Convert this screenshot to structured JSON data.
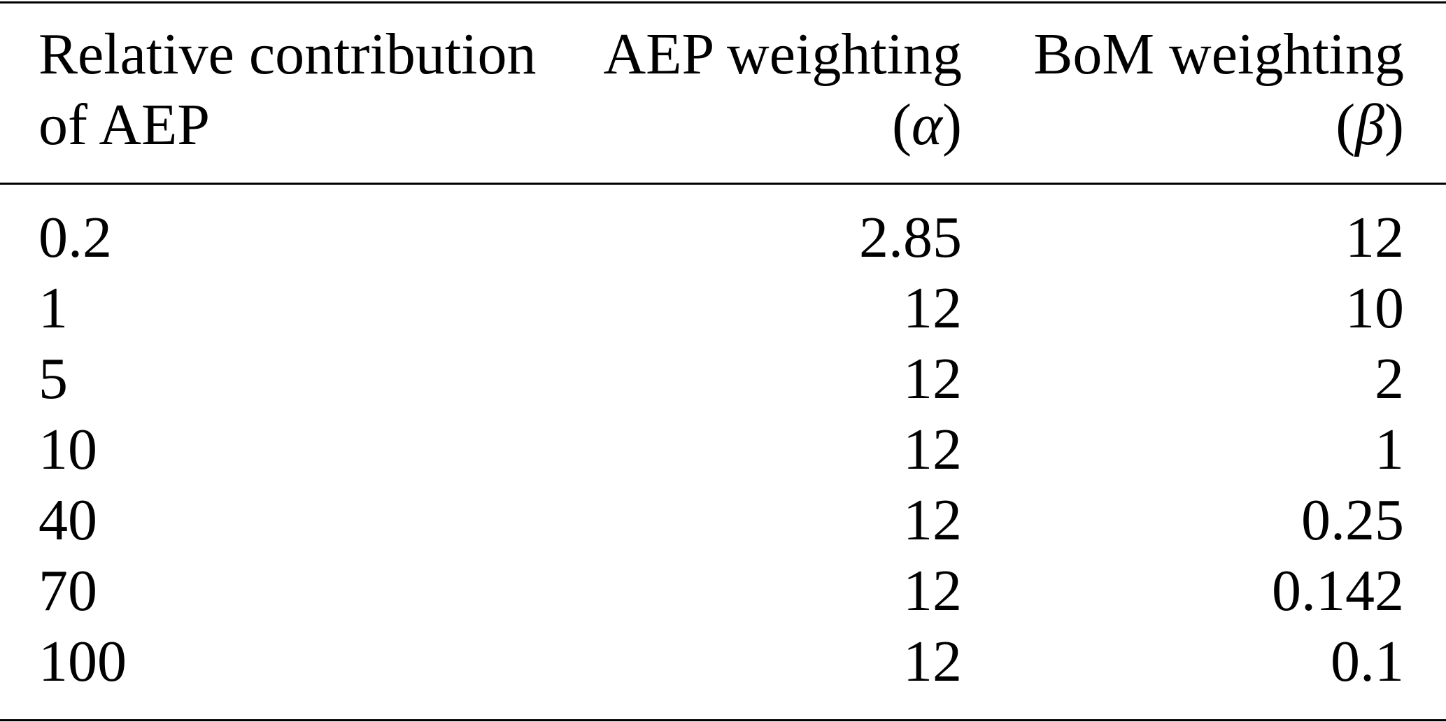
{
  "table": {
    "headers": [
      {
        "line1": "Relative contribution",
        "line2": "of AEP"
      },
      {
        "line1": "AEP weighting",
        "line2_open": "(",
        "symbol": "α",
        "line2_close": ")"
      },
      {
        "line1": "BoM weighting",
        "line2_open": "(",
        "symbol": "β",
        "line2_close": ")"
      }
    ],
    "rows": [
      [
        "0.2",
        "2.85",
        "12"
      ],
      [
        "1",
        "12",
        "10"
      ],
      [
        "5",
        "12",
        "2"
      ],
      [
        "10",
        "12",
        "1"
      ],
      [
        "40",
        "12",
        "0.25"
      ],
      [
        "70",
        "12",
        "0.142"
      ],
      [
        "100",
        "12",
        "0.1"
      ]
    ]
  }
}
